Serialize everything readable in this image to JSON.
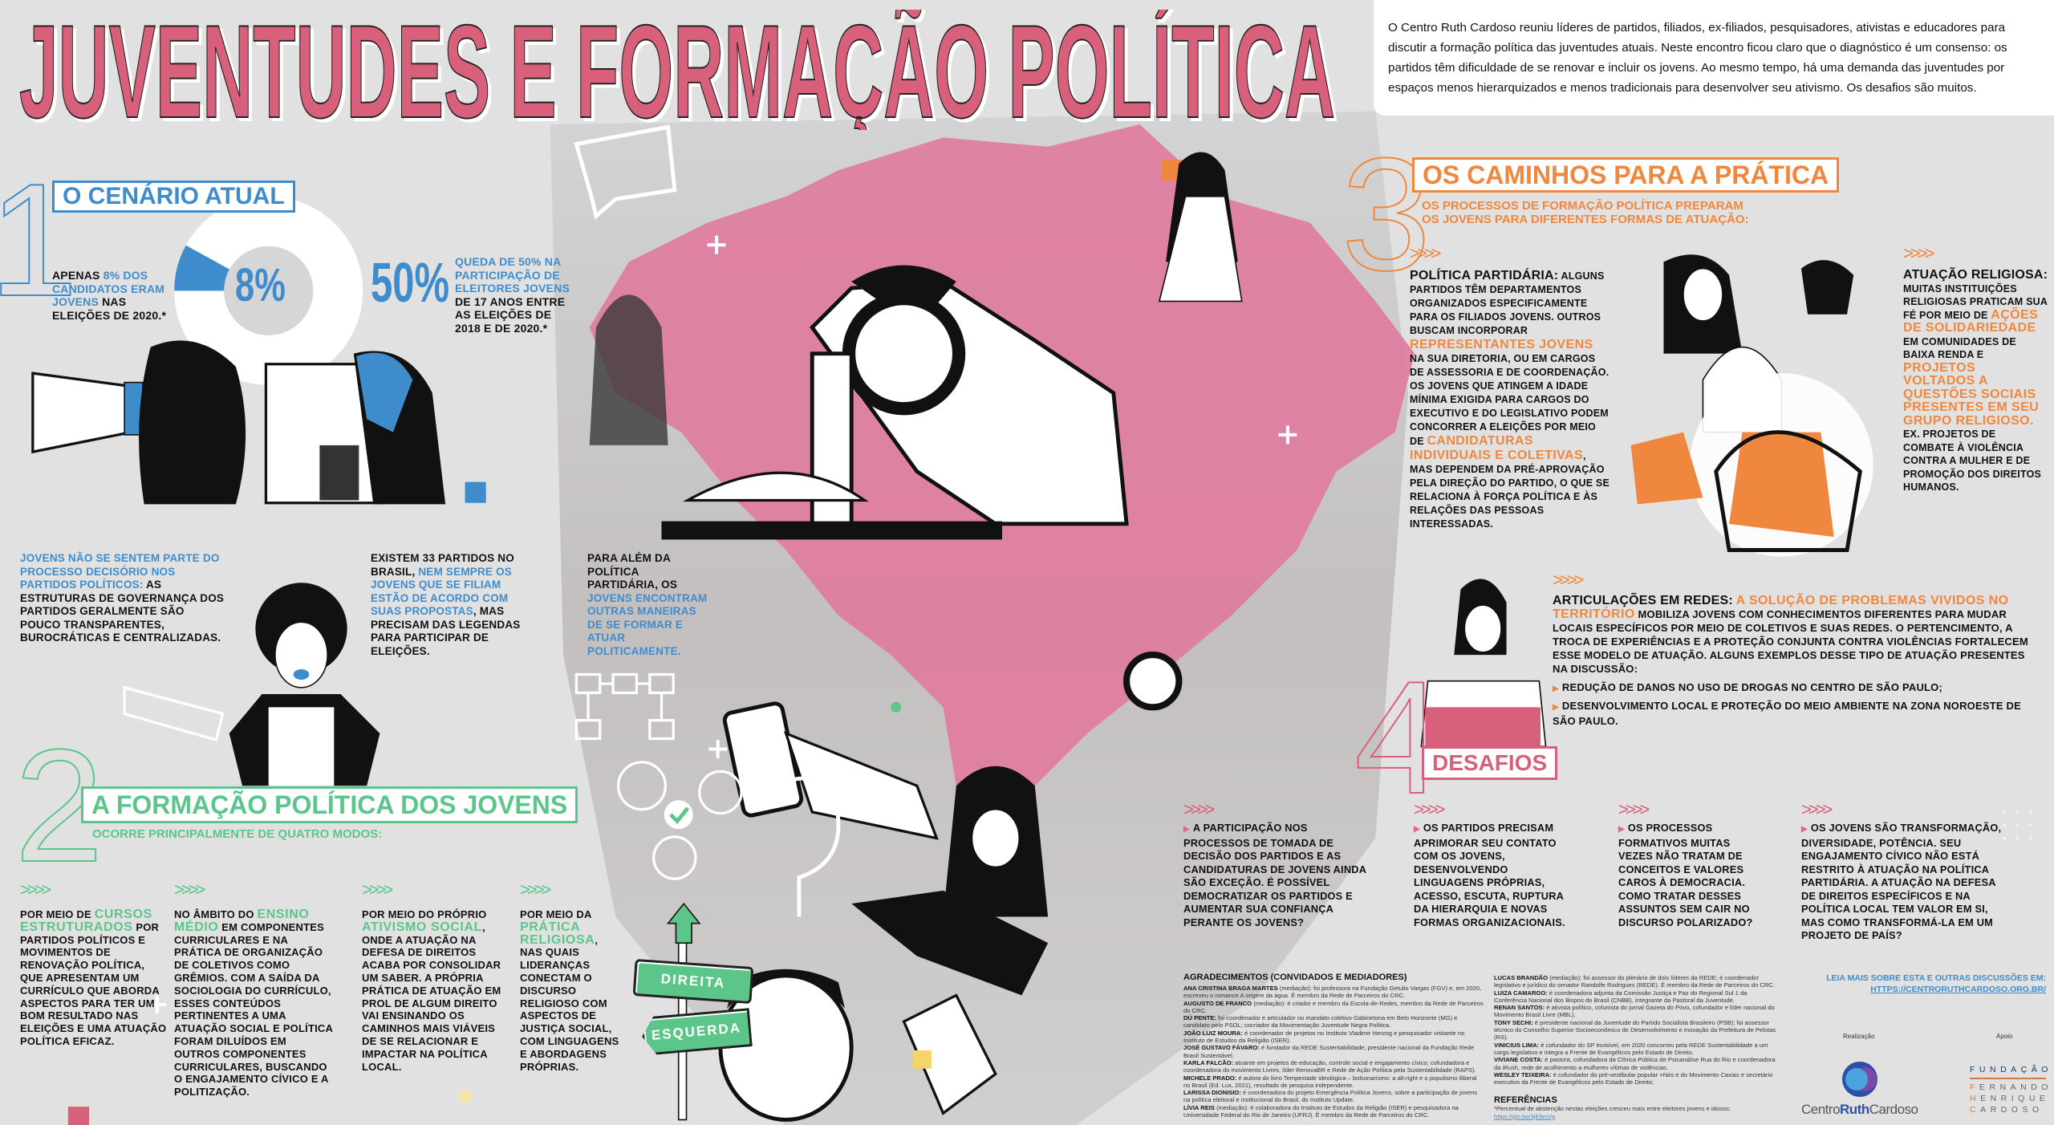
{
  "title": "JUVENTUDES E FORMAÇÃO POLÍTICA",
  "intro": "O Centro Ruth Cardoso reuniu líderes de partidos, filiados, ex-filiados, pesquisadores, ativistas e educadores para discutir a formação política das juventudes atuais. Neste encontro ficou claro que o diagnóstico é um consenso: os partidos têm dificuldade de se renovar e incluir os jovens. Ao mesmo tempo, há uma demanda das juventudes por espaços menos hierarquizados e menos tradicionais para desenvolver seu ativismo. Os desafios são muitos.",
  "colors": {
    "background": "#e1e1e1",
    "pink": "#d9607a",
    "blue": "#3f8ccc",
    "green": "#5cc68a",
    "orange": "#f0873e"
  },
  "section1": {
    "number": "1",
    "heading": "O CENÁRIO ATUAL",
    "donut": {
      "value_percent": 8,
      "label": "8%"
    },
    "stat1": [
      {
        "t": "APENAS "
      },
      {
        "t": "8% DOS CANDIDATOS ERAM JOVENS",
        "hl": true
      },
      {
        "t": " NAS ELEIÇÕES DE 2020.*"
      }
    ],
    "stat2_big": "50%",
    "stat2": [
      {
        "t": "QUEDA DE 50% NA PARTICIPAÇÃO DE ELEITORES JOVENS",
        "hl": true
      },
      {
        "t": " DE 17 ANOS ENTRE AS ELEIÇÕES DE 2018 E DE 2020.*"
      }
    ],
    "note1": [
      {
        "t": "JOVENS NÃO SE SENTEM PARTE DO PROCESSO DECISÓRIO NOS PARTIDOS POLÍTICOS:",
        "hl": true
      },
      {
        "t": " AS ESTRUTURAS DE GOVERNANÇA DOS PARTIDOS GERALMENTE SÃO POUCO TRANSPARENTES, BUROCRÁTICAS E CENTRALIZADAS."
      }
    ],
    "note2": [
      {
        "t": "EXISTEM 33 PARTIDOS NO BRASIL, "
      },
      {
        "t": "NEM SEMPRE OS JOVENS QUE SE FILIAM ESTÃO DE ACORDO COM SUAS PROPOSTAS",
        "hl": true
      },
      {
        "t": ", MAS PRECISAM DAS LEGENDAS PARA PARTICIPAR DE ELEIÇÕES."
      }
    ],
    "note3": [
      {
        "t": "PARA ALÉM DA POLÍTICA PARTIDÁRIA, OS "
      },
      {
        "t": "JOVENS ENCONTRAM OUTRAS MANEIRAS DE SE FORMAR E ATUAR POLITICAMENTE.",
        "hl": true
      }
    ]
  },
  "section2": {
    "number": "2",
    "heading": "A FORMAÇÃO POLÍTICA DOS JOVENS",
    "subheading": "OCORRE PRINCIPALMENTE DE QUATRO MODOS:",
    "chevrons": ">>>>",
    "modes": [
      [
        {
          "t": "POR MEIO DE "
        },
        {
          "t": "CURSOS ESTRUTURADOS",
          "hl": true
        },
        {
          "t": " POR PARTIDOS POLÍTICOS E MOVIMENTOS DE RENOVAÇÃO POLÍTICA, QUE APRESENTAM UM CURRÍCULO QUE ABORDA ASPECTOS PARA TER UM BOM RESULTADO NAS ELEIÇÕES E UMA ATUAÇÃO POLÍTICA EFICAZ."
        }
      ],
      [
        {
          "t": "NO ÂMBITO DO "
        },
        {
          "t": "ENSINO MÉDIO",
          "hl": true
        },
        {
          "t": " EM COMPONENTES CURRICULARES E NA PRÁTICA DE ORGANIZAÇÃO DE COLETIVOS COMO GRÊMIOS. COM A SAÍDA DA SOCIOLOGIA DO CURRÍCULO, ESSES CONTEÚDOS PERTINENTES A UMA ATUAÇÃO SOCIAL E POLÍTICA FORAM DILUÍDOS EM OUTROS COMPONENTES CURRICULARES, BUSCANDO O ENGAJAMENTO CÍVICO E A POLITIZAÇÃO."
        }
      ],
      [
        {
          "t": "POR MEIO DO PRÓPRIO "
        },
        {
          "t": "ATIVISMO SOCIAL",
          "hl": true
        },
        {
          "t": ", ONDE A ATUAÇÃO NA DEFESA DE DIREITOS ACABA POR CONSOLIDAR UM SABER. A PRÓPRIA PRÁTICA DE ATUAÇÃO EM PROL DE ALGUM DIREITO VAI ENSINANDO OS CAMINHOS MAIS VIÁVEIS DE SE RELACIONAR E IMPACTAR NA POLÍTICA LOCAL."
        }
      ],
      [
        {
          "t": "POR MEIO DA "
        },
        {
          "t": "PRÁTICA RELIGIOSA",
          "hl": true
        },
        {
          "t": ", NAS QUAIS LIDERANÇAS CONECTAM O DISCURSO RELIGIOSO COM ASPECTOS DE JUSTIÇA SOCIAL, COM LINGUAGENS E ABORDAGENS PRÓPRIAS."
        }
      ]
    ],
    "signs": {
      "right": "DIREITA",
      "left": "ESQUERDA"
    }
  },
  "section3": {
    "number": "3",
    "heading": "OS CAMINHOS PARA A PRÁTICA",
    "subheading": "OS PROCESSOS DE FORMAÇÃO POLÍTICA PREPARAM OS JOVENS PARA DIFERENTES FORMAS DE ATUAÇÃO:",
    "chevrons": ">>>>",
    "partidaria": [
      {
        "t": "POLÍTICA PARTIDÁRIA:",
        "lead": true
      },
      {
        "t": " ALGUNS PARTIDOS TÊM DEPARTAMENTOS ORGANIZADOS ESPECIFICAMENTE PARA OS FILIADOS JOVENS. OUTROS BUSCAM INCORPORAR "
      },
      {
        "t": "REPRESENTANTES JOVENS",
        "hl": true
      },
      {
        "t": " NA SUA DIRETORIA, OU EM CARGOS DE ASSESSORIA E DE COORDENAÇÃO. OS JOVENS QUE ATINGEM A IDADE MÍNIMA EXIGIDA PARA CARGOS DO EXECUTIVO E DO LEGISLATIVO PODEM CONCORRER A ELEIÇÕES POR MEIO DE "
      },
      {
        "t": "CANDIDATURAS INDIVIDUAIS E COLETIVAS",
        "hl": true
      },
      {
        "t": ", MAS DEPENDEM DA PRÉ-APROVAÇÃO PELA DIREÇÃO DO PARTIDO, O QUE SE RELACIONA À FORÇA POLÍTICA E ÀS RELAÇÕES DAS PESSOAS INTERESSADAS."
      }
    ],
    "religiosa": [
      {
        "t": "ATUAÇÃO RELIGIOSA:",
        "lead": true
      },
      {
        "t": " MUITAS INSTITUIÇÕES RELIGIOSAS PRATICAM SUA FÉ POR MEIO DE "
      },
      {
        "t": "AÇÕES DE SOLIDARIEDADE",
        "hl": true
      },
      {
        "t": " EM COMUNIDADES DE BAIXA RENDA E "
      },
      {
        "t": "PROJETOS VOLTADOS A QUESTÕES SOCIAIS PRESENTES EM SEU GRUPO RELIGIOSO.",
        "hl": true
      },
      {
        "t": " EX. PROJETOS DE COMBATE À VIOLÊNCIA CONTRA A MULHER E DE PROMOÇÃO DOS DIREITOS HUMANOS."
      }
    ],
    "redes": [
      {
        "t": "ARTICULAÇÕES EM REDES:",
        "lead": true
      },
      {
        "t": " "
      },
      {
        "t": "A SOLUÇÃO DE PROBLEMAS VIVIDOS NO TERRITÓRIO",
        "hl": true
      },
      {
        "t": " MOBILIZA JOVENS COM CONHECIMENTOS DIFERENTES PARA MUDAR LOCAIS ESPECÍFICOS POR MEIO DE COLETIVOS E SUAS REDES. O PERTENCIMENTO, A TROCA DE EXPERIÊNCIAS E A PROTEÇÃO CONJUNTA CONTRA VIOLÊNCIAS FORTALECEM ESSE MODELO DE ATUAÇÃO. ALGUNS EXEMPLOS DESSE TIPO DE ATUAÇÃO PRESENTES NA DISCUSSÃO:"
      }
    ],
    "redes_examples": [
      "REDUÇÃO DE DANOS NO USO DE DROGAS NO CENTRO DE SÃO PAULO;",
      "DESENVOLVIMENTO LOCAL E PROTEÇÃO DO MEIO AMBIENTE NA ZONA NOROESTE DE SÃO PAULO."
    ]
  },
  "section4": {
    "number": "4",
    "heading": "DESAFIOS",
    "chevrons": ">>>>",
    "items": [
      "A PARTICIPAÇÃO NOS PROCESSOS DE TOMADA DE DECISÃO DOS PARTIDOS E AS CANDIDATURAS DE JOVENS AINDA SÃO EXCEÇÃO. É POSSÍVEL DEMOCRATIZAR OS PARTIDOS E AUMENTAR SUA CONFIANÇA PERANTE OS JOVENS?",
      "OS PARTIDOS PRECISAM APRIMORAR SEU CONTATO COM OS JOVENS, DESENVOLVENDO LINGUAGENS PRÓPRIAS, ACESSO, ESCUTA, RUPTURA DA HIERARQUIA E NOVAS FORMAS ORGANIZACIONAIS.",
      "OS PROCESSOS FORMATIVOS MUITAS VEZES NÃO TRATAM DE CONCEITOS E VALORES CAROS À DEMOCRACIA. COMO TRATAR DESSES ASSUNTOS SEM CAIR NO DISCURSO POLARIZADO?",
      "OS JOVENS SÃO TRANSFORMAÇÃO, DIVERSIDADE, POTÊNCIA. SEU ENGAJAMENTO CÍVICO NÃO ESTÁ RESTRITO À ATUAÇÃO NA POLÍTICA PARTIDÁRIA. A ATUAÇÃO NA DEFESA DE DIREITOS ESPECÍFICOS E NA POLÍTICA LOCAL TEM VALOR EM SI, MAS COMO TRANSFORMÁ-LA EM UM PROJETO DE PAÍS?"
    ]
  },
  "acknowledgments": {
    "heading": "AGRADECIMENTOS (CONVIDADOS E MEDIADORES)",
    "col1": [
      {
        "name": "ANA CRISTINA BRAGA MARTES",
        "text": " (mediação): foi professora na Fundação Getulio Vargas (FGV) e, em 2020, escreveu o romance A origem da água. É membro da Rede de Parceiros do CRC."
      },
      {
        "name": "AUGUSTO DE FRANCO",
        "text": " (mediação): é criador e membro da Escola-de-Redes, membro da Rede de Parceiros do CRC."
      },
      {
        "name": "DÚ PENTE:",
        "text": " foi coordenador e articulador no mandato coletivo Gabinetona em Belo Horizonte (MG) e candidato pelo PSOL; cocriador da Movimentação Juventude Negra Política."
      },
      {
        "name": "JOÃO LUIZ MOURA:",
        "text": " é coordenador de projetos no Instituto Vladimir Herzog e pesquisador visitante no Instituto de Estudos da Religião (ISER)."
      },
      {
        "name": "JOSÉ GUSTAVO FÁVARO:",
        "text": " é fundador da REDE Sustentabilidade; presidente nacional da Fundação Rede Brasil Sustentável."
      },
      {
        "name": "KARLA FALCÃO:",
        "text": " atuante em projetos de educação, controle social e engajamento cívico; cofundadora e coordenadora do movimento Livres, líder RenovaBR e Rede de Ação Política pela Sustentabilidade (RAPS)."
      },
      {
        "name": "MICHELE PRADO:",
        "text": " é autora do livro Tempestade ideológica – bolsonarismo: a alt-right e o populismo iliberal no Brasil (Ed. Lux, 2021), resultado de pesquisa independente."
      },
      {
        "name": "LARISSA DIONISIO:",
        "text": " é coordenadora do projeto Emergência Política Jovens, sobre a participação de jovens na política eleitoral e institucional do Brasil, do Instituto Update."
      },
      {
        "name": "LÍVIA REIS",
        "text": " (mediação): é colaboradora do Instituto de Estudos da Religião (ISER) e pesquisadora na Universidade Federal do Rio de Janeiro (UFRJ). É membro da Rede de Parceiros do CRC."
      }
    ],
    "col2": [
      {
        "name": "LUCAS BRANDÃO",
        "text": " (mediação): foi assessor do plenário de dois líderes da REDE; é coordenador legislativo e jurídico do senador Randolfe Rodrigues (REDE). É membro da Rede de Parceiros do CRC."
      },
      {
        "name": "LUIZA CAMARGO:",
        "text": " é coordenadora adjunta da Comissão Justiça e Paz do Regional Sul 1 da Conferência Nacional dos Bispos do Brasil (CNBB), integrante da Pastoral da Juventude."
      },
      {
        "name": "RENAN SANTOS:",
        "text": " é ativista político, colunista do jornal Gazeta do Povo, cofundador e líder nacional do Movimento Brasil Livre (MBL)."
      },
      {
        "name": "TONY SECHI:",
        "text": " é presidente nacional da Juventude do Partido Socialista Brasileiro (PSB); foi assessor técnico do Conselho Superior Socioeconômico de Desenvolvimento e Inovação da Prefeitura de Pelotas (RS)."
      },
      {
        "name": "VINICIUS LIMA:",
        "text": " é cofundador do SP Invisível, em 2020 concorreu pela REDE Sustentabilidade a um cargo legislativo e integra a Frente de Evangélicos pelo Estado de Direito."
      },
      {
        "name": "VIVIANE COSTA:",
        "text": " é pastora, cofundadora da Clínica Pública de Psicanálise Rua do Rio e coordenadora da iRush, rede de acolhimento a mulheres vítimas de violências."
      },
      {
        "name": "WESLEY TEIXEIRA:",
        "text": " é cofundador do pré-vestibular popular +Nós e do Movimento Caxias e secretário executivo da Frente de Evangélicos pelo Estado de Direito;"
      }
    ],
    "references_heading": "REFERÊNCIAS",
    "reference_text": "*Percentual de abstenção nestas eleições cresceu mais entre eleitores jovens e idosos: ",
    "reference_link": "https://glo.bo/3jE6mVp"
  },
  "footer": {
    "read_more": "LEIA MAIS SOBRE ESTA E OUTRAS DISCUSSÕES EM:",
    "read_more_link": "HTTPS://CENTRORUTHCARDOSO.ORG.BR/",
    "realizacao_label": "Realização",
    "apoio_label": "Apoio",
    "crc_logo": {
      "part1": "Centro",
      "part2": "Ruth",
      "part3": "Cardoso"
    },
    "fhc_logo": {
      "line1": "FUNDAÇÃO",
      "line2": "FERNANDO",
      "line3": "HENRIQUE",
      "line4": "CARDOSO"
    }
  }
}
